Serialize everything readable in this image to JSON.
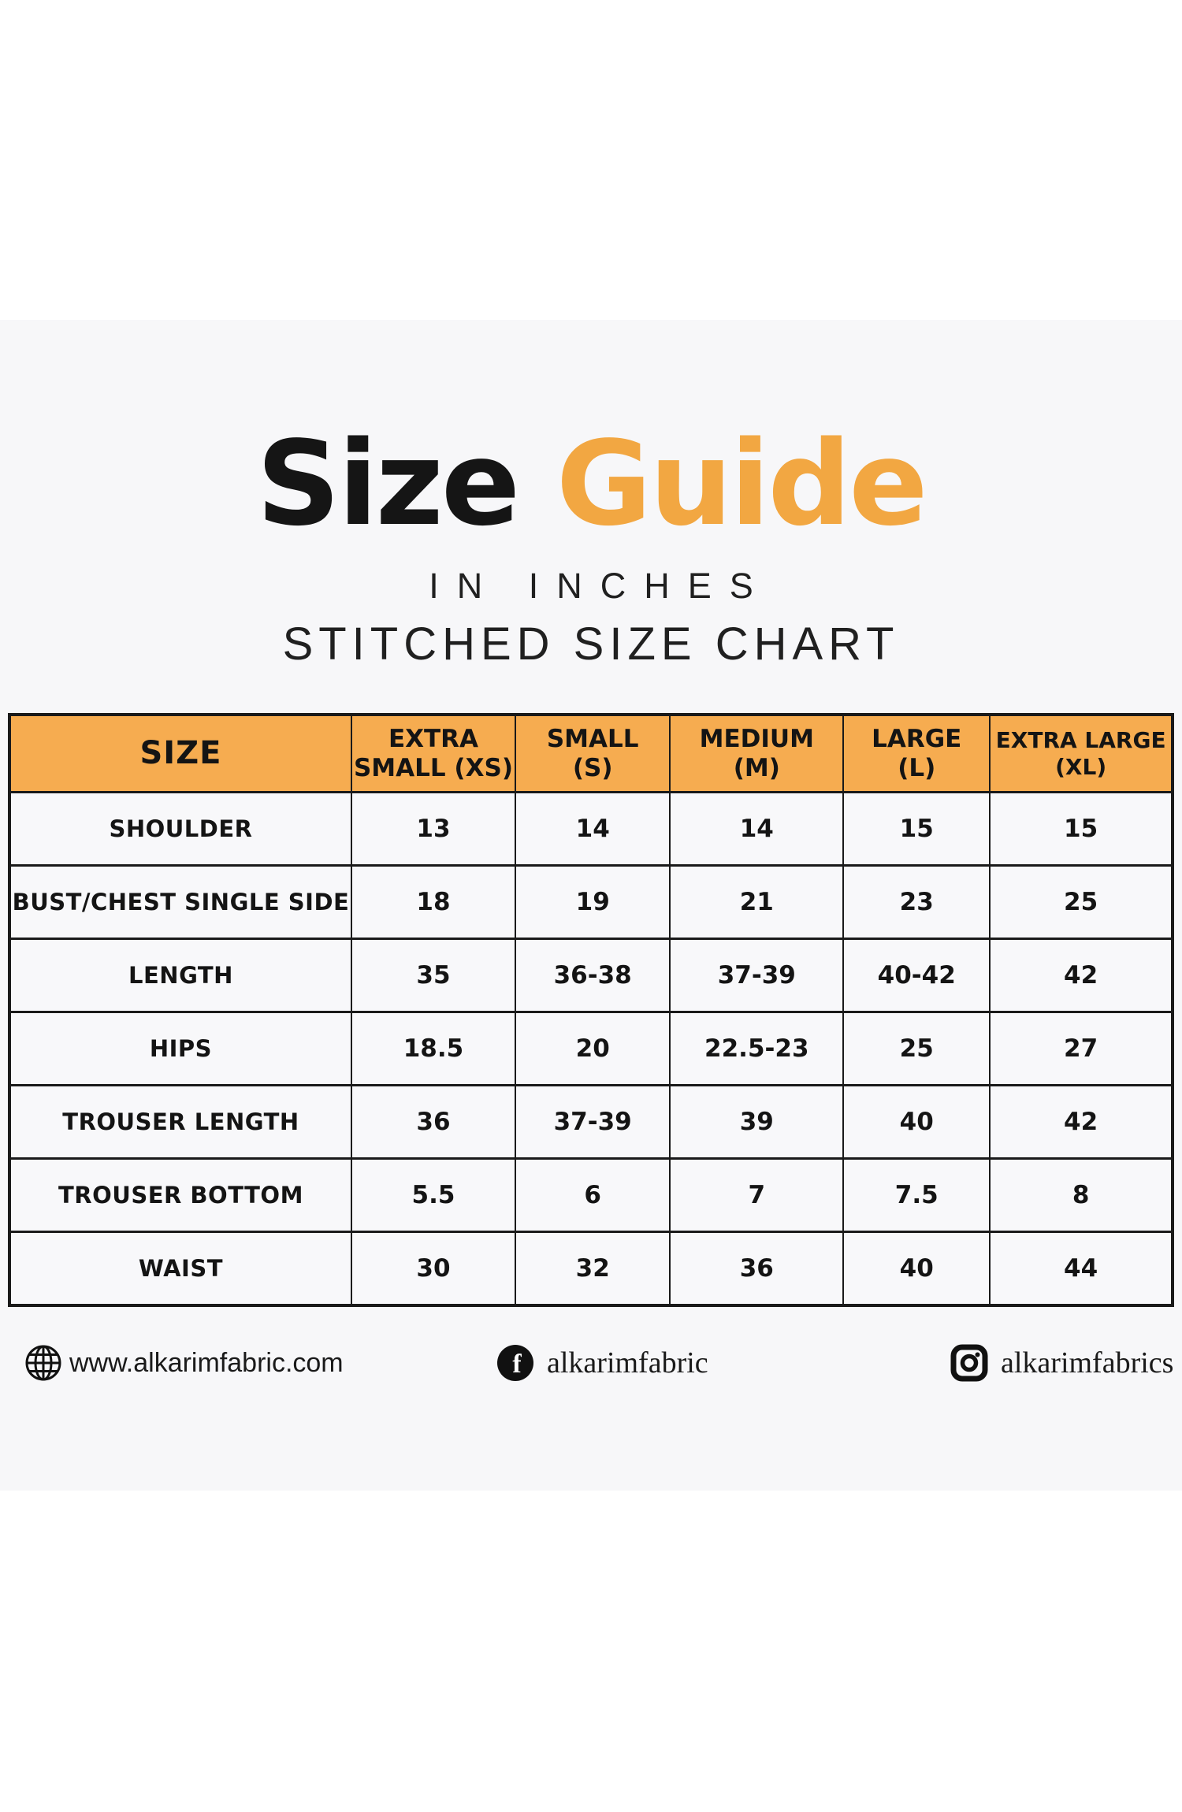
{
  "title": {
    "word_black": "Size",
    "word_orange": "Guide",
    "subtitle_inches": "IN INCHES",
    "subtitle_stitched": "STITCHED SIZE CHART"
  },
  "colors": {
    "accent_orange_header": "#F6AC50",
    "title_orange": "#F2A742",
    "text_black": "#1A1A1A",
    "band_gray": "#F7F7F9"
  },
  "table": {
    "size_label": "SIZE",
    "column_headers": [
      [
        "EXTRA",
        "SMALL (XS)"
      ],
      [
        "SMALL",
        "(S)"
      ],
      [
        "MEDIUM",
        "(M)"
      ],
      [
        "LARGE",
        "(L)"
      ],
      [
        "EXTRA LARGE",
        "(XL)"
      ]
    ],
    "rows": [
      {
        "label": "SHOULDER",
        "values": [
          "13",
          "14",
          "14",
          "15",
          "15"
        ]
      },
      {
        "label": "BUST/CHEST SINGLE SIDE",
        "values": [
          "18",
          "19",
          "21",
          "23",
          "25"
        ]
      },
      {
        "label": "LENGTH",
        "values": [
          "35",
          "36-38",
          "37-39",
          "40-42",
          "42"
        ]
      },
      {
        "label": "HIPS",
        "values": [
          "18.5",
          "20",
          "22.5-23",
          "25",
          "27"
        ]
      },
      {
        "label": "TROUSER LENGTH",
        "values": [
          "36",
          "37-39",
          "39",
          "40",
          "42"
        ]
      },
      {
        "label": "TROUSER BOTTOM",
        "values": [
          "5.5",
          "6",
          "7",
          "7.5",
          "8"
        ]
      },
      {
        "label": "WAIST",
        "values": [
          "30",
          "32",
          "36",
          "40",
          "44"
        ]
      }
    ]
  },
  "footer": {
    "website": {
      "icon": "globe-icon",
      "text": "www.alkarimfabric.com"
    },
    "facebook": {
      "icon": "facebook-icon",
      "text": "alkarimfabric"
    },
    "instagram": {
      "icon": "instagram-icon",
      "text": "alkarimfabrics"
    }
  }
}
